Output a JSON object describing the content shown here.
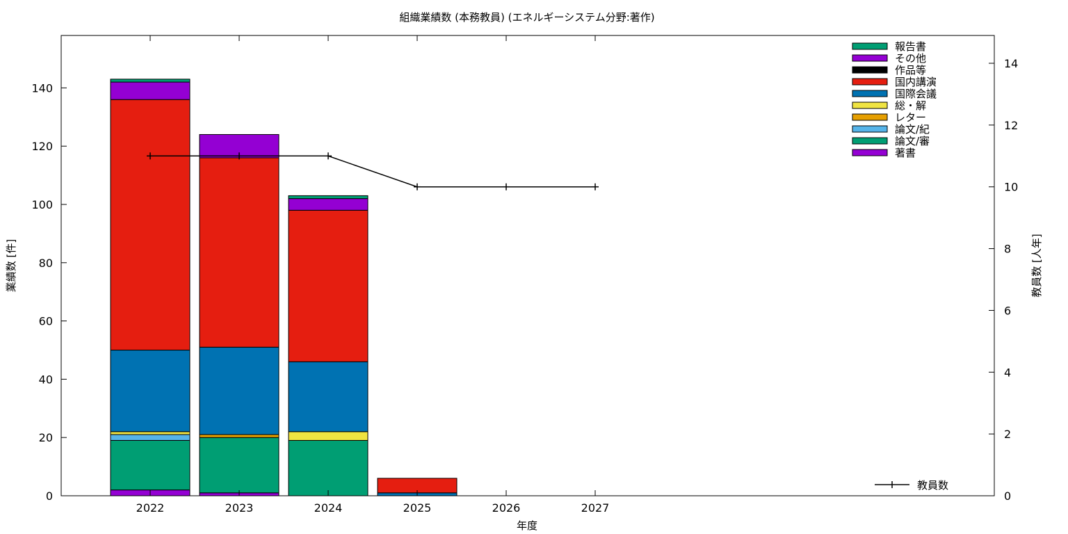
{
  "chart_data": {
    "type": "bar",
    "stacked": true,
    "title": "組織業績数 (本務教員) (エネルギーシステム分野:著作)",
    "xlabel": "年度",
    "ylabel": "業績数 [件]",
    "y2label": "教員数 [人年]",
    "categories": [
      "2022",
      "2023",
      "2024",
      "2025",
      "2026",
      "2027"
    ],
    "ylim": [
      0,
      158
    ],
    "yticks": [
      0,
      20,
      40,
      60,
      80,
      100,
      120,
      140
    ],
    "y2lim": [
      0,
      14.9
    ],
    "y2ticks": [
      0,
      2,
      4,
      6,
      8,
      10,
      12,
      14
    ],
    "grid": false,
    "legend_position": "top-right",
    "series": [
      {
        "name": "著書",
        "color": "#9400d3",
        "values": [
          2,
          1,
          0,
          0,
          0,
          0
        ]
      },
      {
        "name": "論文/審",
        "color": "#009e73",
        "values": [
          17,
          19,
          19,
          0,
          0,
          0
        ]
      },
      {
        "name": "論文/紀",
        "color": "#56b4e9",
        "values": [
          2,
          0,
          0,
          0,
          0,
          0
        ]
      },
      {
        "name": "レター",
        "color": "#e69f00",
        "values": [
          0,
          1,
          0,
          0,
          0,
          0
        ]
      },
      {
        "name": "総・解",
        "color": "#f0e442",
        "values": [
          1,
          0,
          3,
          0,
          0,
          0
        ]
      },
      {
        "name": "国際会議",
        "color": "#0072b2",
        "values": [
          28,
          30,
          24,
          1,
          0,
          0
        ]
      },
      {
        "name": "国内講演",
        "color": "#e51e10",
        "values": [
          86,
          65,
          52,
          5,
          0,
          0
        ]
      },
      {
        "name": "作品等",
        "color": "#000000",
        "values": [
          0,
          0,
          0,
          0,
          0,
          0
        ]
      },
      {
        "name": "その他",
        "color": "#9400d3",
        "values": [
          6,
          8,
          4,
          0,
          0,
          0
        ]
      },
      {
        "name": "報告書",
        "color": "#009e73",
        "values": [
          1,
          0,
          1,
          0,
          0,
          0
        ]
      }
    ],
    "line_series": {
      "name": "教員数",
      "axis": "y2",
      "color": "#000000",
      "values": [
        11,
        11,
        11,
        10,
        10,
        10
      ]
    }
  }
}
